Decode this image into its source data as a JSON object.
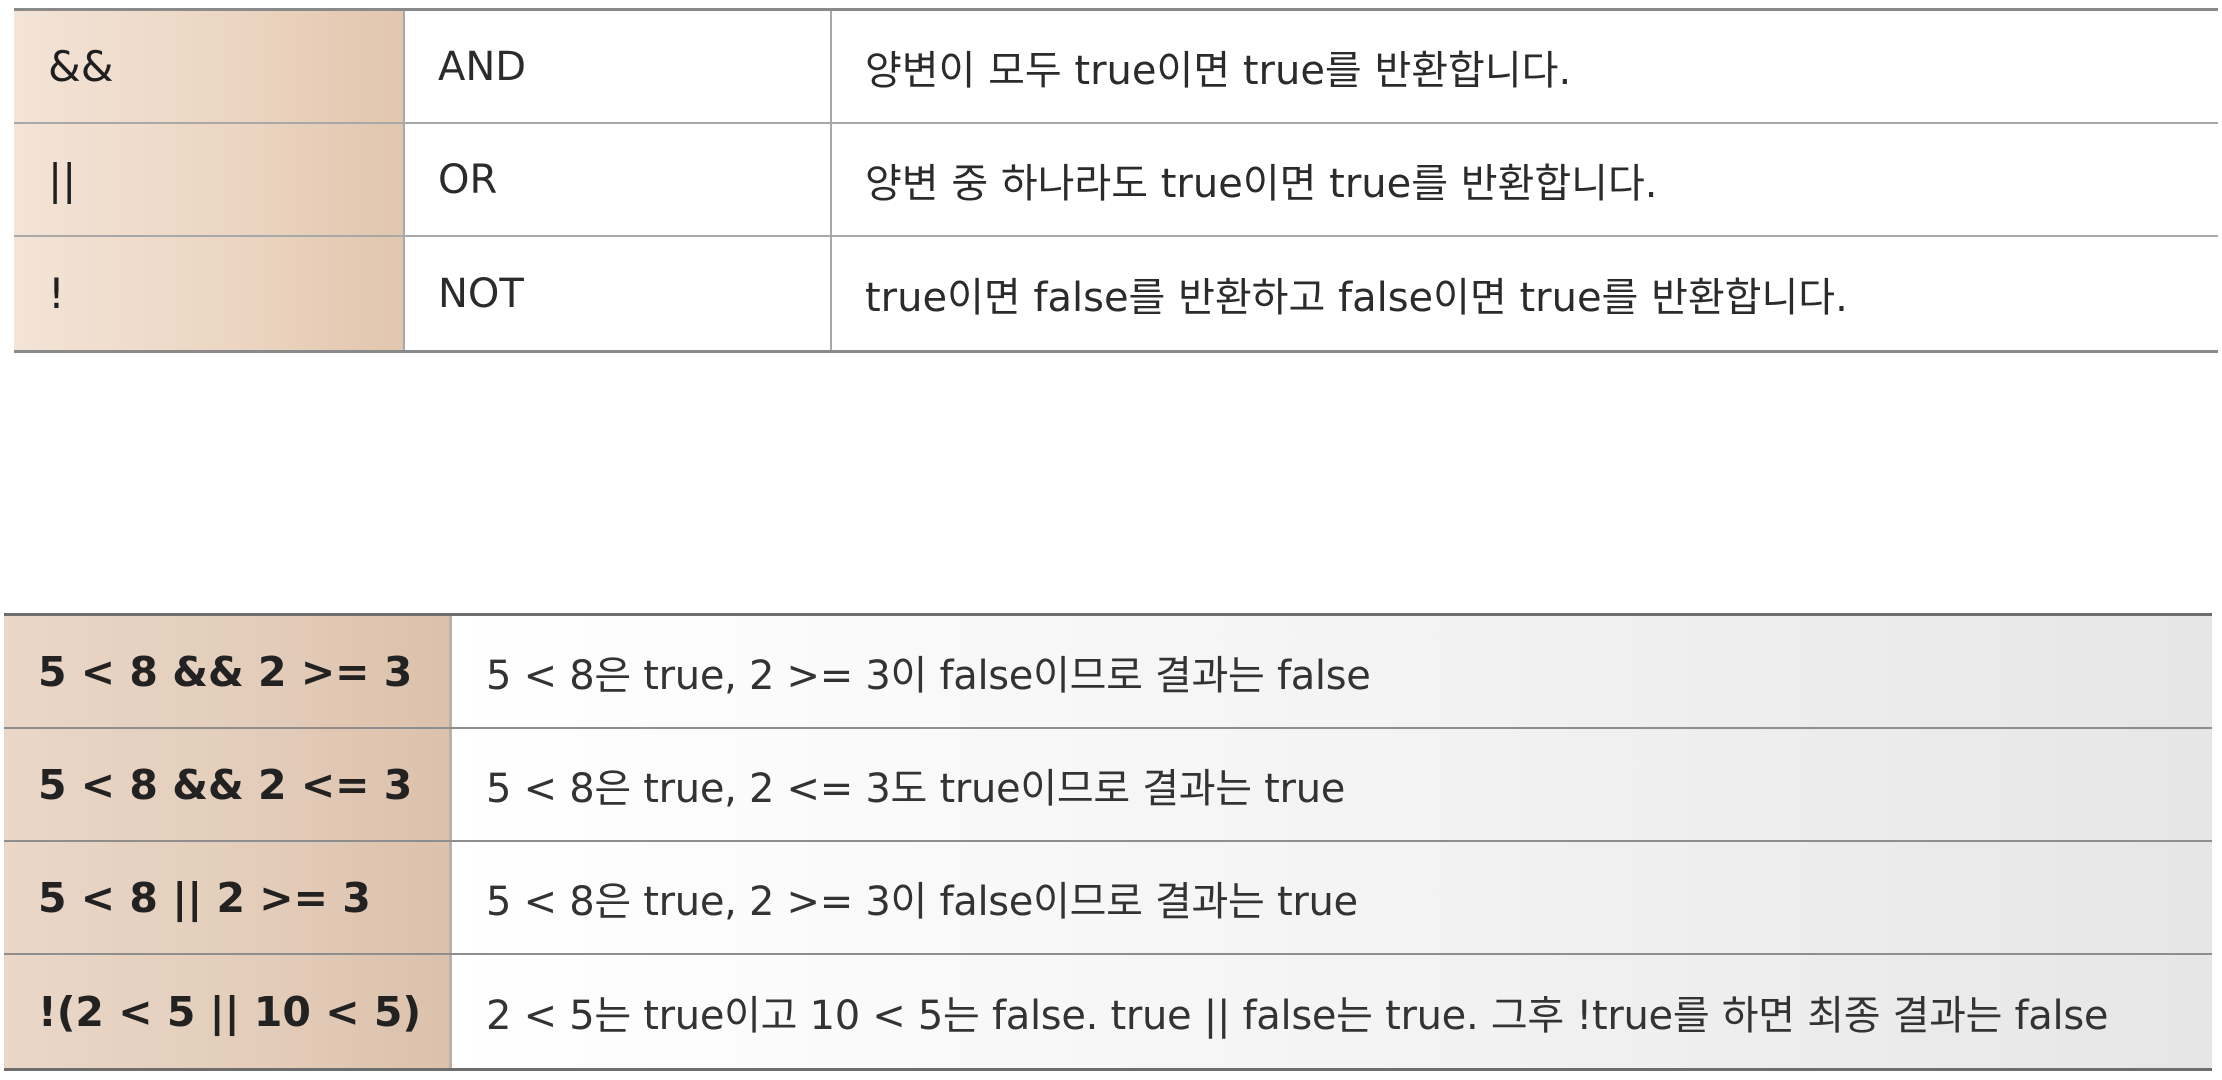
{
  "operators": [
    {
      "symbol": "&&",
      "name": "AND",
      "description": "양변이 모두 true이면 true를 반환합니다."
    },
    {
      "symbol": "||",
      "name": "OR",
      "description": "양변 중 하나라도 true이면 true를 반환합니다."
    },
    {
      "symbol": "!",
      "name": "NOT",
      "description": "true이면 false를 반환하고 false이면 true를 반환합니다."
    }
  ],
  "examples": [
    {
      "expression": "5 < 8 && 2 >= 3",
      "explanation": "5 < 8은 true, 2 >= 3이 false이므로 결과는 false"
    },
    {
      "expression": "5 < 8 && 2 <= 3",
      "explanation": "5 < 8은 true, 2 <= 3도 true이므로 결과는 true"
    },
    {
      "expression": "5 < 8 || 2 >= 3",
      "explanation": "5 < 8은 true, 2 >= 3이 false이므로 결과는 true"
    },
    {
      "expression": "!(2 < 5 || 10 < 5)",
      "explanation": "2 < 5는 true이고 10 < 5는 false. true || false는 true. 그후 !true를 하면 최종 결과는 false"
    }
  ]
}
